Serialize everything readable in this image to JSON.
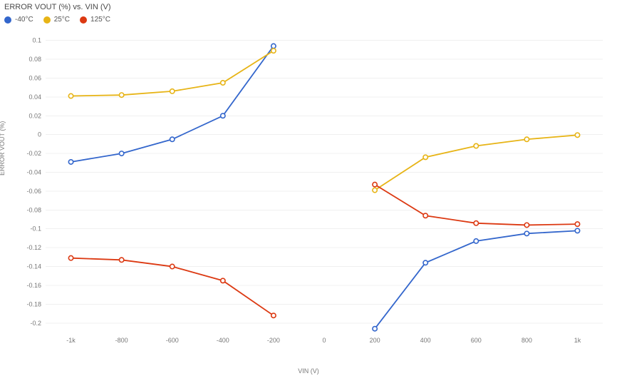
{
  "title": "ERROR VOUT (%) vs. VIN (V)",
  "xlabel": "VIN (V)",
  "ylabel": "ERROR VOUT (%)",
  "title_fontsize": 11,
  "label_fontsize": 9,
  "tick_fontsize": 9,
  "background_color": "#ffffff",
  "grid_color": "#f0f0f0",
  "xlim": [
    -1100,
    1100
  ],
  "ylim": [
    -0.21,
    0.105
  ],
  "xticks": [
    -1000,
    -800,
    -600,
    -400,
    -200,
    0,
    200,
    400,
    600,
    800,
    1000
  ],
  "xticklabels": [
    "-1k",
    "-800",
    "-600",
    "-400",
    "-200",
    "0",
    "200",
    "400",
    "600",
    "800",
    "1k"
  ],
  "yticks": [
    0.1,
    0.08,
    0.06,
    0.04,
    0.02,
    0,
    -0.02,
    -0.04,
    -0.06,
    -0.08,
    -0.1,
    -0.12,
    -0.14,
    -0.16,
    -0.18,
    -0.2
  ],
  "yticklabels": [
    "0.1",
    "0.08",
    "0.06",
    "0.04",
    "0.02",
    "0",
    "-0.02",
    "-0.04",
    "-0.06",
    "-0.08",
    "-0.1",
    "-0.12",
    "-0.14",
    "-0.16",
    "-0.18",
    "-0.2"
  ],
  "marker_radius": 3.2,
  "line_width": 1.8,
  "marker_fill": "#ffffff",
  "series": [
    {
      "name": "-40°C",
      "color": "#3366cc",
      "left": {
        "x": [
          -1000,
          -800,
          -600,
          -400,
          -200
        ],
        "y": [
          -0.029,
          -0.02,
          -0.005,
          0.02,
          0.094
        ]
      },
      "right": {
        "x": [
          200,
          400,
          600,
          800,
          1000
        ],
        "y": [
          -0.206,
          -0.136,
          -0.113,
          -0.105,
          -0.102
        ]
      }
    },
    {
      "name": "25°C",
      "color": "#e7b416",
      "left": {
        "x": [
          -1000,
          -800,
          -600,
          -400,
          -200
        ],
        "y": [
          0.041,
          0.042,
          0.046,
          0.055,
          0.089
        ]
      },
      "right": {
        "x": [
          200,
          400,
          600,
          800,
          1000
        ],
        "y": [
          -0.059,
          -0.024,
          -0.012,
          -0.005,
          -0.0005
        ]
      }
    },
    {
      "name": "125°C",
      "color": "#dc3912",
      "left": {
        "x": [
          -1000,
          -800,
          -600,
          -400,
          -200
        ],
        "y": [
          -0.131,
          -0.133,
          -0.14,
          -0.155,
          -0.192
        ]
      },
      "right": {
        "x": [
          200,
          400,
          600,
          800,
          1000
        ],
        "y": [
          -0.053,
          -0.086,
          -0.094,
          -0.096,
          -0.095
        ]
      }
    }
  ]
}
